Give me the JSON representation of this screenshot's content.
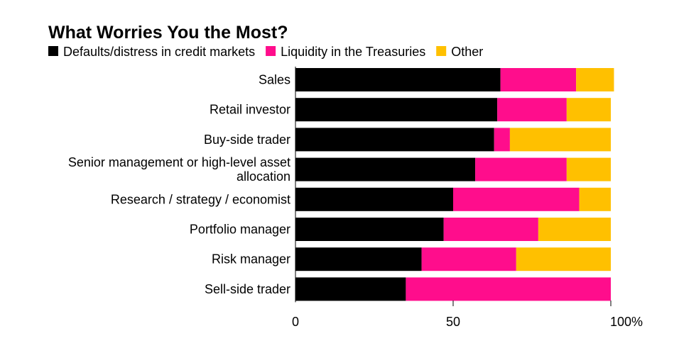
{
  "chart_data": {
    "type": "bar",
    "orientation": "horizontal",
    "stacked": true,
    "title": "What Worries You the Most?",
    "categories": [
      "Sales",
      "Retail investor",
      "Buy-side trader",
      "Senior management or high-level asset allocation",
      "Research / strategy / economist",
      "Portfolio manager",
      "Risk manager",
      "Sell-side trader"
    ],
    "category_lines": [
      [
        "Sales"
      ],
      [
        "Retail investor"
      ],
      [
        "Buy-side trader"
      ],
      [
        "Senior management or high-level asset",
        "allocation"
      ],
      [
        "Research / strategy / economist"
      ],
      [
        "Portfolio manager"
      ],
      [
        "Risk manager"
      ],
      [
        "Sell-side trader"
      ]
    ],
    "series": [
      {
        "name": "Defaults/distress in credit markets",
        "color": "#000000",
        "values": [
          65,
          64,
          63,
          57,
          50,
          47,
          40,
          35
        ]
      },
      {
        "name": "Liquidity in the Treasuries",
        "color": "#ff0d8c",
        "values": [
          24,
          22,
          5,
          29,
          40,
          30,
          30,
          65
        ]
      },
      {
        "name": "Other",
        "color": "#ffc000",
        "values": [
          12,
          14,
          32,
          14,
          10,
          23,
          30,
          0
        ]
      }
    ],
    "xlim": [
      0,
      100
    ],
    "xticks": [
      0,
      50,
      100
    ],
    "xtick_labels": [
      "0",
      "50",
      "100%"
    ],
    "legend_placement": "top-left",
    "grid": false
  }
}
